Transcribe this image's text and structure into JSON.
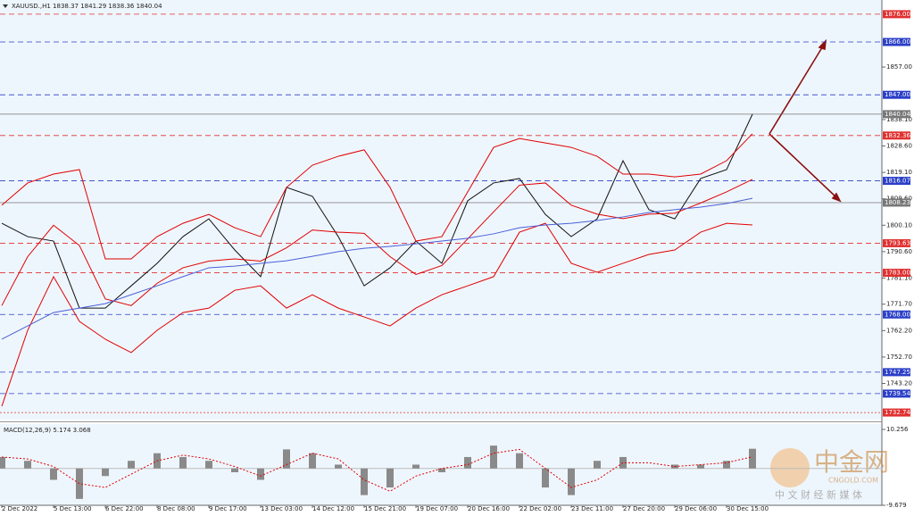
{
  "chart_data": [
    {
      "type": "line",
      "title": "XAUUSD.,H1  1838.37 1841.29 1838.36 1840.04",
      "categories": [
        "2 Dec 2022",
        null,
        "5 Dec 13:00",
        null,
        "6 Dec 22:00",
        null,
        "8 Dec 08:00",
        null,
        "9 Dec 17:00",
        null,
        "13 Dec 03:00",
        null,
        "14 Dec 12:00",
        null,
        "15 Dec 21:00",
        null,
        "19 Dec 07:00",
        null,
        "20 Dec 16:00",
        null,
        "22 Dec 02:00",
        null,
        "23 Dec 11:00",
        null,
        "27 Dec 20:00",
        null,
        "29 Dec 06:00",
        null,
        "30 Dec 15:00",
        null
      ],
      "series": [
        {
          "color": "#111111",
          "values": [
            1800.8,
            1796.0,
            1794.4,
            1770.3,
            1770.3,
            1778.3,
            1786.4,
            1796.0,
            1802.4,
            1791.2,
            1781.6,
            1813.7,
            1810.5,
            1796.0,
            1778.3,
            1784.8,
            1794.4,
            1786.4,
            1808.9,
            1815.3,
            1816.9,
            1804.0,
            1796.0,
            1802.4,
            1823.3,
            1805.7,
            1802.4,
            1816.9,
            1820.1,
            1840.04
          ]
        },
        {
          "color": "#e00000",
          "values": [
            1807.3,
            1815.3,
            1818.5,
            1820.1,
            1788.0,
            1788.0,
            1796.0,
            1800.8,
            1804.0,
            1799.2,
            1796.0,
            1813.7,
            1821.7,
            1824.9,
            1827.2,
            1813.7,
            1794.4,
            1796.0,
            1812.1,
            1828.1,
            1831.3,
            1829.7,
            1828.1,
            1824.9,
            1818.5,
            1818.5,
            1817.5,
            1818.5,
            1823.3,
            1833.0
          ]
        },
        {
          "color": "#e00000",
          "values": [
            1771.2,
            1788.8,
            1800.1,
            1792.8,
            1773.6,
            1771.2,
            1779.2,
            1784.8,
            1787.2,
            1788.0,
            1787.2,
            1792.0,
            1798.4,
            1797.6,
            1797.2,
            1788.8,
            1782.4,
            1785.6,
            1795.2,
            1804.9,
            1814.5,
            1815.3,
            1807.3,
            1804.1,
            1802.5,
            1804.1,
            1804.4,
            1808.1,
            1812.1,
            1816.6
          ]
        },
        {
          "color": "#e00000",
          "values": [
            1735.0,
            1762.3,
            1781.6,
            1765.5,
            1759.1,
            1754.3,
            1762.3,
            1768.7,
            1770.3,
            1776.7,
            1778.3,
            1770.3,
            1775.1,
            1770.3,
            1767.1,
            1763.9,
            1770.3,
            1775.1,
            1778.3,
            1781.6,
            1797.6,
            1800.8,
            1786.4,
            1783.2,
            1786.4,
            1789.6,
            1791.2,
            1797.6,
            1800.8,
            1800.2
          ]
        },
        {
          "color": "#4a5fd8",
          "values": [
            1759.1,
            1763.9,
            1768.7,
            1770.3,
            1771.9,
            1775.1,
            1778.3,
            1781.6,
            1784.8,
            1785.4,
            1786.4,
            1787.3,
            1788.9,
            1790.6,
            1791.8,
            1792.5,
            1793.4,
            1794.4,
            1795.4,
            1797.0,
            1799.2,
            1800.2,
            1800.8,
            1801.8,
            1803.1,
            1804.7,
            1805.7,
            1806.6,
            1807.9,
            1809.8
          ]
        }
      ],
      "ylim": [
        1730.2,
        1881.1
      ],
      "yticks": [
        {
          "value": 1857.0,
          "label": "1857.00"
        },
        {
          "value": 1838.1,
          "label": "1838.10"
        },
        {
          "value": 1828.6,
          "label": "1828.60"
        },
        {
          "value": 1819.1,
          "label": "1819.10"
        },
        {
          "value": 1809.6,
          "label": "1809.60"
        },
        {
          "value": 1800.1,
          "label": "1800.10"
        },
        {
          "value": 1790.6,
          "label": "1790.60"
        },
        {
          "value": 1781.1,
          "label": "1781.10"
        },
        {
          "value": 1771.7,
          "label": "1771.70"
        },
        {
          "value": 1762.2,
          "label": "1762.20"
        },
        {
          "value": 1752.7,
          "label": "1752.70"
        },
        {
          "value": 1743.2,
          "label": "1743.20"
        }
      ],
      "levels": [
        {
          "value": 1876.0,
          "label": "1876.00",
          "color": "#e03030",
          "style": "dashed"
        },
        {
          "value": 1866.0,
          "label": "1866.00",
          "color": "#2a3fc8",
          "style": "dashed"
        },
        {
          "value": 1847.0,
          "label": "1847.00",
          "color": "#2a3fc8",
          "style": "dashed"
        },
        {
          "value": 1840.04,
          "label": "1840.04",
          "color": "#777777",
          "style": "solid"
        },
        {
          "value": 1832.36,
          "label": "1832.36",
          "color": "#e03030",
          "style": "dashed"
        },
        {
          "value": 1816.07,
          "label": "1816.07",
          "color": "#2a3fc8",
          "style": "dashed"
        },
        {
          "value": 1808.23,
          "label": "1808.23",
          "color": "#777777",
          "style": "solid"
        },
        {
          "value": 1793.63,
          "label": "1793.63",
          "color": "#e03030",
          "style": "dashed"
        },
        {
          "value": 1783.0,
          "label": "1783.00",
          "color": "#e03030",
          "style": "dashed"
        },
        {
          "value": 1768.0,
          "label": "1768.00",
          "color": "#2a3fc8",
          "style": "dashed"
        },
        {
          "value": 1747.25,
          "label": "1747.25",
          "color": "#2a3fc8",
          "style": "dashed"
        },
        {
          "value": 1739.54,
          "label": "1739.54",
          "color": "#2a3fc8",
          "style": "dashed"
        },
        {
          "value": 1732.74,
          "label": "1732.74",
          "color": "#e03030",
          "style": "dotted"
        }
      ]
    },
    {
      "type": "bar",
      "title": "MACD(12,26,9) 5.174 3.068",
      "series": [
        {
          "color": "#8a8a8a",
          "values": [
            3,
            2,
            -3,
            -8,
            -2,
            2,
            4,
            3,
            2,
            -1,
            -3,
            5,
            4,
            1,
            -7,
            -5,
            1,
            -1,
            3,
            6,
            4,
            -5,
            -7,
            2,
            3,
            0,
            1,
            1,
            2,
            5.174
          ]
        },
        {
          "color": "#e00000",
          "values": [
            3,
            2.5,
            0.5,
            -4,
            -5,
            -1.5,
            2,
            3.5,
            2.5,
            0.5,
            -2,
            1,
            4,
            2.5,
            -3,
            -6,
            -2,
            0,
            1,
            4,
            5,
            0,
            -5,
            -3,
            1.5,
            1.5,
            0.5,
            1,
            1.5,
            3.068
          ]
        }
      ],
      "ylim": [
        -9.679,
        10.256
      ],
      "yticks": [
        {
          "value": 10.256,
          "label": "10.256"
        },
        {
          "value": -9.679,
          "label": "-9.679"
        }
      ]
    }
  ],
  "watermark": {
    "brand": "中金网",
    "site": "CNGOLD.COM",
    "slogan": "中 文 财 经 新 媒 体"
  }
}
